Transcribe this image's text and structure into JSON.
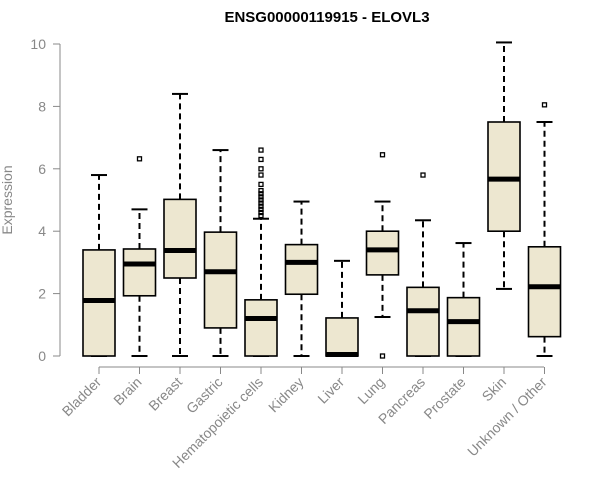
{
  "chart_data": {
    "type": "boxplot",
    "title": "ENSG00000119915 - ELOVL3",
    "xlabel": "",
    "ylabel": "Expression",
    "ylim": [
      0,
      10
    ],
    "yticks": [
      0,
      2,
      4,
      6,
      8,
      10
    ],
    "tick_labels": [
      "0",
      "2",
      "4",
      "6",
      "8",
      "10"
    ],
    "categories": [
      "Bladder",
      "Brain",
      "Breast",
      "Gastric",
      "Hematopoietic cells",
      "Kidney",
      "Liver",
      "Lung",
      "Pancreas",
      "Prostate",
      "Skin",
      "Unknown / Other"
    ],
    "boxes": [
      {
        "name": "Bladder",
        "whisker_low": 0,
        "q1": 0,
        "median": 1.78,
        "q3": 3.4,
        "whisker_high": 5.8,
        "outliers": []
      },
      {
        "name": "Brain",
        "whisker_low": 0,
        "q1": 1.93,
        "median": 2.95,
        "q3": 3.43,
        "whisker_high": 4.7,
        "outliers": [
          6.32
        ]
      },
      {
        "name": "Breast",
        "whisker_low": 0,
        "q1": 2.5,
        "median": 3.38,
        "q3": 5.02,
        "whisker_high": 8.4,
        "outliers": []
      },
      {
        "name": "Gastric",
        "whisker_low": 0,
        "q1": 0.9,
        "median": 2.7,
        "q3": 3.97,
        "whisker_high": 6.6,
        "outliers": []
      },
      {
        "name": "Hematopoietic cells",
        "whisker_low": 0,
        "q1": 0,
        "median": 1.2,
        "q3": 1.8,
        "whisker_high": 4.4,
        "outliers": [
          4.5,
          4.6,
          4.7,
          4.8,
          4.9,
          5.0,
          5.1,
          5.2,
          5.3,
          5.5,
          5.8,
          6.0,
          6.3,
          6.6
        ]
      },
      {
        "name": "Kidney",
        "whisker_low": 0,
        "q1": 1.98,
        "median": 3.0,
        "q3": 3.57,
        "whisker_high": 4.95,
        "outliers": []
      },
      {
        "name": "Liver",
        "whisker_low": 0,
        "q1": 0,
        "median": 0.05,
        "q3": 1.22,
        "whisker_high": 3.05,
        "outliers": []
      },
      {
        "name": "Lung",
        "whisker_low": 1.25,
        "q1": 2.6,
        "median": 3.4,
        "q3": 4.0,
        "whisker_high": 4.95,
        "outliers": [
          6.45,
          0
        ]
      },
      {
        "name": "Pancreas",
        "whisker_low": 0,
        "q1": 0,
        "median": 1.45,
        "q3": 2.2,
        "whisker_high": 4.35,
        "outliers": [
          5.8
        ]
      },
      {
        "name": "Prostate",
        "whisker_low": 0,
        "q1": 0,
        "median": 1.1,
        "q3": 1.87,
        "whisker_high": 3.62,
        "outliers": []
      },
      {
        "name": "Skin",
        "whisker_low": 2.15,
        "q1": 4.0,
        "median": 5.67,
        "q3": 7.5,
        "whisker_high": 10.05,
        "outliers": []
      },
      {
        "name": "Unknown / Other",
        "whisker_low": 0,
        "q1": 0.62,
        "median": 2.22,
        "q3": 3.5,
        "whisker_high": 7.5,
        "outliers": [
          8.05
        ]
      }
    ]
  }
}
